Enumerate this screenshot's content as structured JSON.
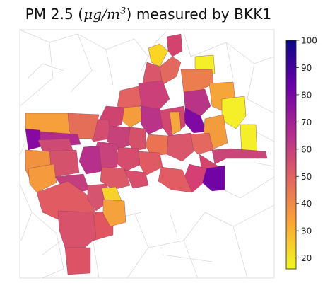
{
  "title": {
    "prefix": "PM 2.5 (",
    "unit_mu": "μg/m",
    "unit_exp": "3",
    "suffix": ") measured by BKK1"
  },
  "colorbar": {
    "colormap": "plasma_r",
    "min": 16,
    "max": 100,
    "ticks": [
      20,
      30,
      40,
      50,
      60,
      70,
      80,
      90,
      100
    ],
    "stops": [
      "#f0f921",
      "#fca636",
      "#e16462",
      "#b12a90",
      "#6a00a8",
      "#0d0887"
    ]
  },
  "colors": {
    "background": "#ffffff",
    "outside_boundary": "#cfcfcf",
    "district_edge": "#7a3a5a"
  }
}
